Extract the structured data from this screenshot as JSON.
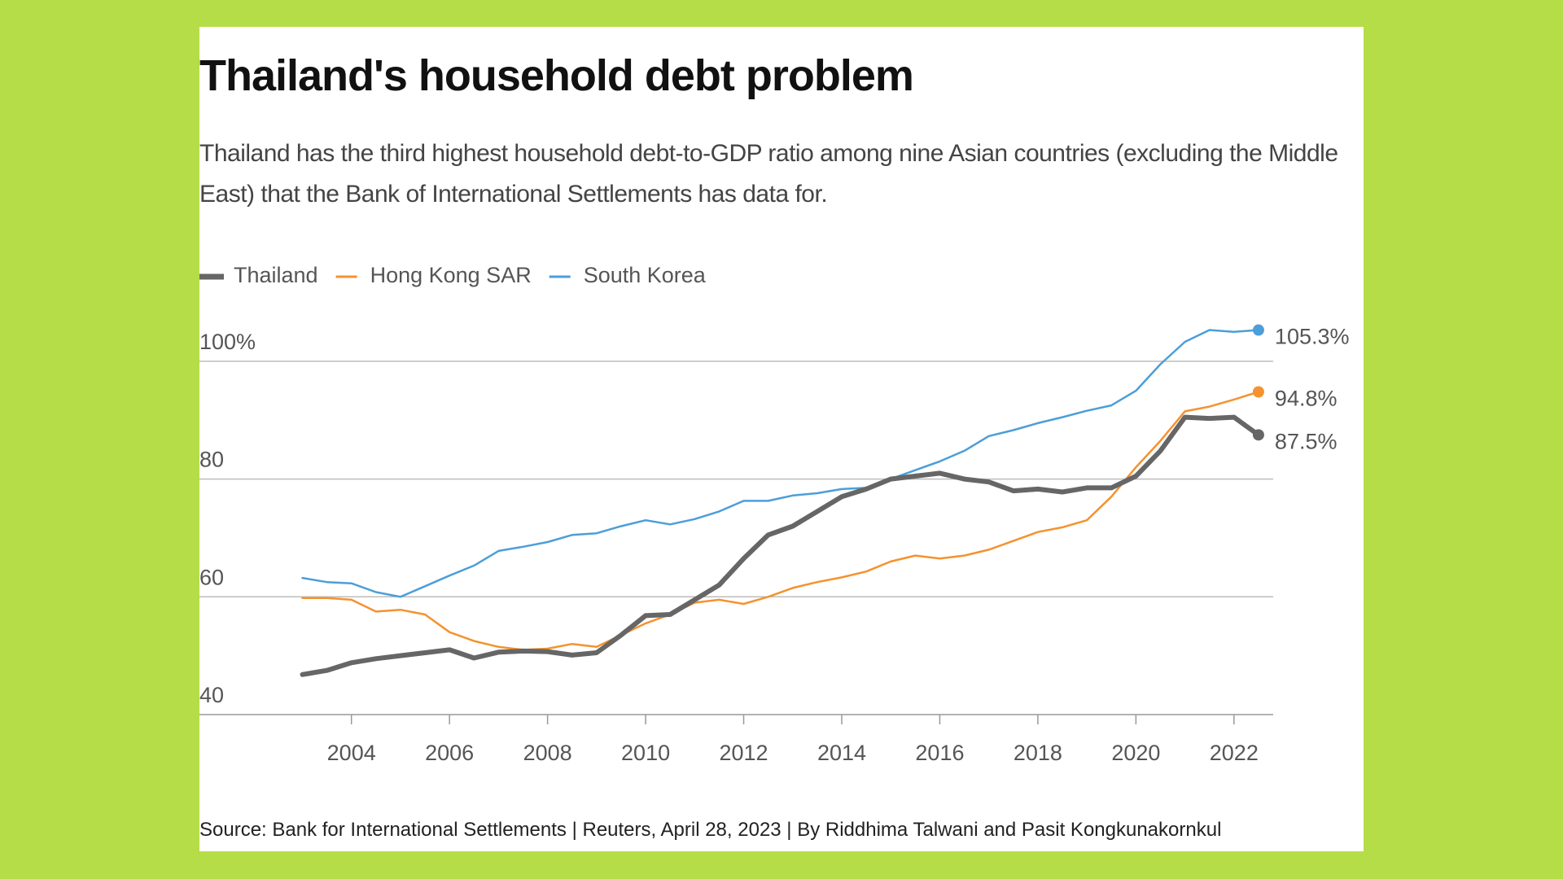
{
  "chart_data": {
    "type": "line",
    "title": "Thailand's household debt problem",
    "subtitle": "Thailand has the third highest household debt-to-GDP ratio among nine Asian countries (excluding the Middle East) that the Bank of International Settlements has data for.",
    "source": "Source: Bank for International Settlements | Reuters, April 28, 2023 | By Riddhima Talwani and Pasit Kongkunakornkul",
    "x": [
      2003.0,
      2003.5,
      2004.0,
      2004.5,
      2005.0,
      2005.5,
      2006.0,
      2006.5,
      2007.0,
      2007.5,
      2008.0,
      2008.5,
      2009.0,
      2009.5,
      2010.0,
      2010.5,
      2011.0,
      2011.5,
      2012.0,
      2012.5,
      2013.0,
      2013.5,
      2014.0,
      2014.5,
      2015.0,
      2015.5,
      2016.0,
      2016.5,
      2017.0,
      2017.5,
      2018.0,
      2018.5,
      2019.0,
      2019.5,
      2020.0,
      2020.5,
      2021.0,
      2021.5,
      2022.0,
      2022.5
    ],
    "series": [
      {
        "name": "Thailand",
        "color": "#666666",
        "width": 6,
        "values": [
          46.8,
          47.5,
          48.8,
          49.5,
          50.0,
          50.5,
          51.0,
          49.6,
          50.6,
          50.8,
          50.7,
          50.1,
          50.5,
          53.5,
          56.8,
          57.0,
          59.5,
          62.0,
          66.5,
          70.5,
          72.0,
          74.5,
          77.0,
          78.3,
          80.0,
          80.5,
          81.0,
          80.0,
          79.5,
          78.0,
          78.3,
          77.8,
          78.5,
          78.5,
          80.5,
          84.8,
          90.5,
          90.3,
          90.5,
          87.5
        ],
        "value_labels": [
          null,
          null,
          null,
          null,
          null,
          null,
          null,
          null,
          null,
          null,
          null,
          null,
          null,
          null,
          null,
          null,
          null,
          null,
          null,
          null,
          null,
          null,
          null,
          null,
          null,
          null,
          null,
          null,
          null,
          null,
          null,
          null,
          null,
          null,
          null,
          null,
          null,
          null,
          null,
          "87.5%"
        ]
      },
      {
        "name": "Hong Kong SAR",
        "color": "#f5922f",
        "width": 2.5,
        "values": [
          59.8,
          59.8,
          59.5,
          57.5,
          57.8,
          57.0,
          54.0,
          52.5,
          51.5,
          51.0,
          51.2,
          52.0,
          51.5,
          53.5,
          55.5,
          57.0,
          59.0,
          59.5,
          58.8,
          60.0,
          61.5,
          62.5,
          63.3,
          64.3,
          66.0,
          67.0,
          66.5,
          67.0,
          68.0,
          69.5,
          71.0,
          71.8,
          73.0,
          77.0,
          82.0,
          86.5,
          91.5,
          92.3,
          93.5,
          94.8
        ],
        "value_labels": [
          null,
          null,
          null,
          null,
          null,
          null,
          null,
          null,
          null,
          null,
          null,
          null,
          null,
          null,
          null,
          null,
          null,
          null,
          null,
          null,
          null,
          null,
          null,
          null,
          null,
          null,
          null,
          null,
          null,
          null,
          null,
          null,
          null,
          null,
          null,
          null,
          null,
          null,
          null,
          "94.8%"
        ]
      },
      {
        "name": "South Korea",
        "color": "#4c9ed9",
        "width": 2.5,
        "values": [
          63.2,
          62.5,
          62.3,
          60.8,
          60.0,
          61.8,
          63.6,
          65.3,
          67.8,
          68.5,
          69.3,
          70.5,
          70.8,
          72.0,
          73.0,
          72.3,
          73.2,
          74.5,
          76.3,
          76.3,
          77.2,
          77.6,
          78.3,
          78.5,
          80.0,
          81.5,
          83.0,
          84.8,
          87.3,
          88.3,
          89.5,
          90.5,
          91.6,
          92.5,
          95.0,
          99.5,
          103.3,
          105.3,
          105.0,
          105.3
        ],
        "value_labels": [
          null,
          null,
          null,
          null,
          null,
          null,
          null,
          null,
          null,
          null,
          null,
          null,
          null,
          null,
          null,
          null,
          null,
          null,
          null,
          null,
          null,
          null,
          null,
          null,
          null,
          null,
          null,
          null,
          null,
          null,
          null,
          null,
          null,
          null,
          null,
          null,
          null,
          null,
          null,
          "105.3%"
        ]
      }
    ],
    "xlim": [
      2000.9,
      2022.8
    ],
    "xticks": [
      2004,
      2006,
      2008,
      2010,
      2012,
      2014,
      2016,
      2018,
      2020,
      2022
    ],
    "ylim": [
      40,
      108
    ],
    "yticks": [
      40,
      60,
      80,
      {
        "value": 100,
        "label": "100%"
      }
    ],
    "grid": true
  }
}
